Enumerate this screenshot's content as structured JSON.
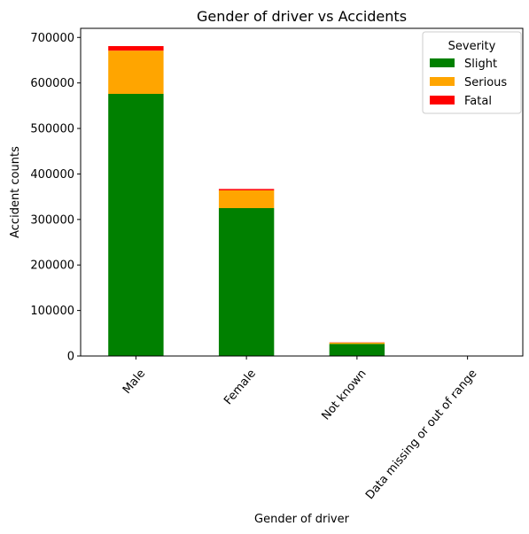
{
  "chart_data": {
    "type": "bar",
    "stacked": true,
    "title": "Gender of driver vs Accidents",
    "xlabel": "Gender of driver",
    "ylabel": "Accident counts",
    "categories": [
      "Male",
      "Female",
      "Not known",
      "Data missing or out of range"
    ],
    "series": [
      {
        "name": "Slight",
        "color": "#008000",
        "values": [
          576000,
          325000,
          26500,
          0
        ]
      },
      {
        "name": "Serious",
        "color": "#FFA500",
        "values": [
          95000,
          39000,
          3000,
          0
        ]
      },
      {
        "name": "Fatal",
        "color": "#FF0000",
        "values": [
          10000,
          3000,
          500,
          0
        ]
      }
    ],
    "ylim": [
      0,
      720000
    ],
    "yticks": [
      0,
      100000,
      200000,
      300000,
      400000,
      500000,
      600000,
      700000
    ],
    "ytick_labels": [
      "0",
      "100000",
      "200000",
      "300000",
      "400000",
      "500000",
      "600000",
      "700000"
    ],
    "legend": {
      "title": "Severity",
      "placement": "top-right"
    },
    "grid": false
  }
}
